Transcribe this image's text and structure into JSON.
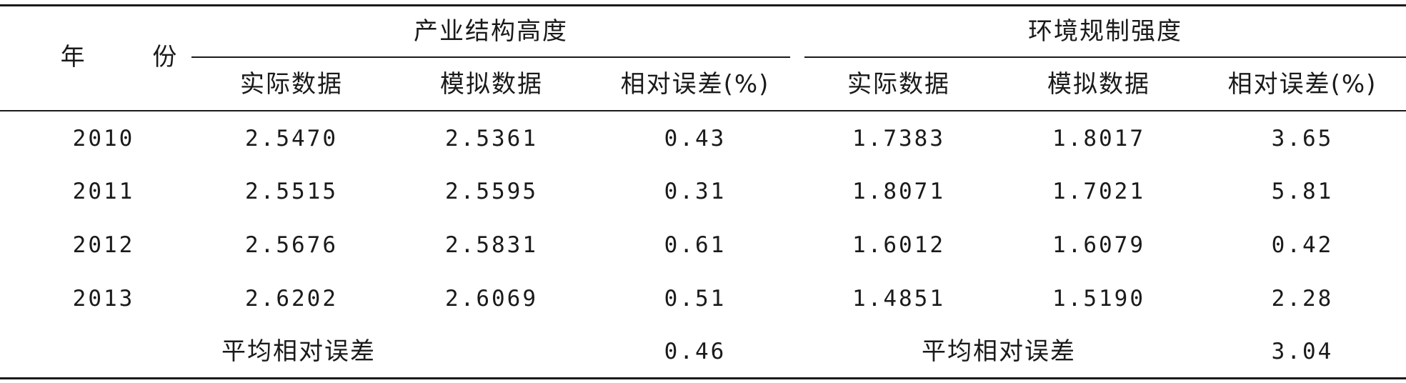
{
  "header": {
    "year": "年 份",
    "group_left": "产业结构高度",
    "group_right": "环境规制强度",
    "sub_left": [
      "实际数据",
      "模拟数据",
      "相对误差(%)"
    ],
    "sub_right": [
      "实际数据",
      "模拟数据",
      "相对误差(%)"
    ]
  },
  "rows": [
    {
      "year": "2010",
      "left": [
        "2.5470",
        "2.5361",
        "0.43"
      ],
      "right": [
        "1.7383",
        "1.8017",
        "3.65"
      ]
    },
    {
      "year": "2011",
      "left": [
        "2.5515",
        "2.5595",
        "0.31"
      ],
      "right": [
        "1.8071",
        "1.7021",
        "5.81"
      ]
    },
    {
      "year": "2012",
      "left": [
        "2.5676",
        "2.5831",
        "0.61"
      ],
      "right": [
        "1.6012",
        "1.6079",
        "0.42"
      ]
    },
    {
      "year": "2013",
      "left": [
        "2.6202",
        "2.6069",
        "0.51"
      ],
      "right": [
        "1.4851",
        "1.5190",
        "2.28"
      ]
    }
  ],
  "summary": {
    "left_label": "平均相对误差",
    "left_value": "0.46",
    "right_label": "平均相对误差",
    "right_value": "3.04"
  }
}
